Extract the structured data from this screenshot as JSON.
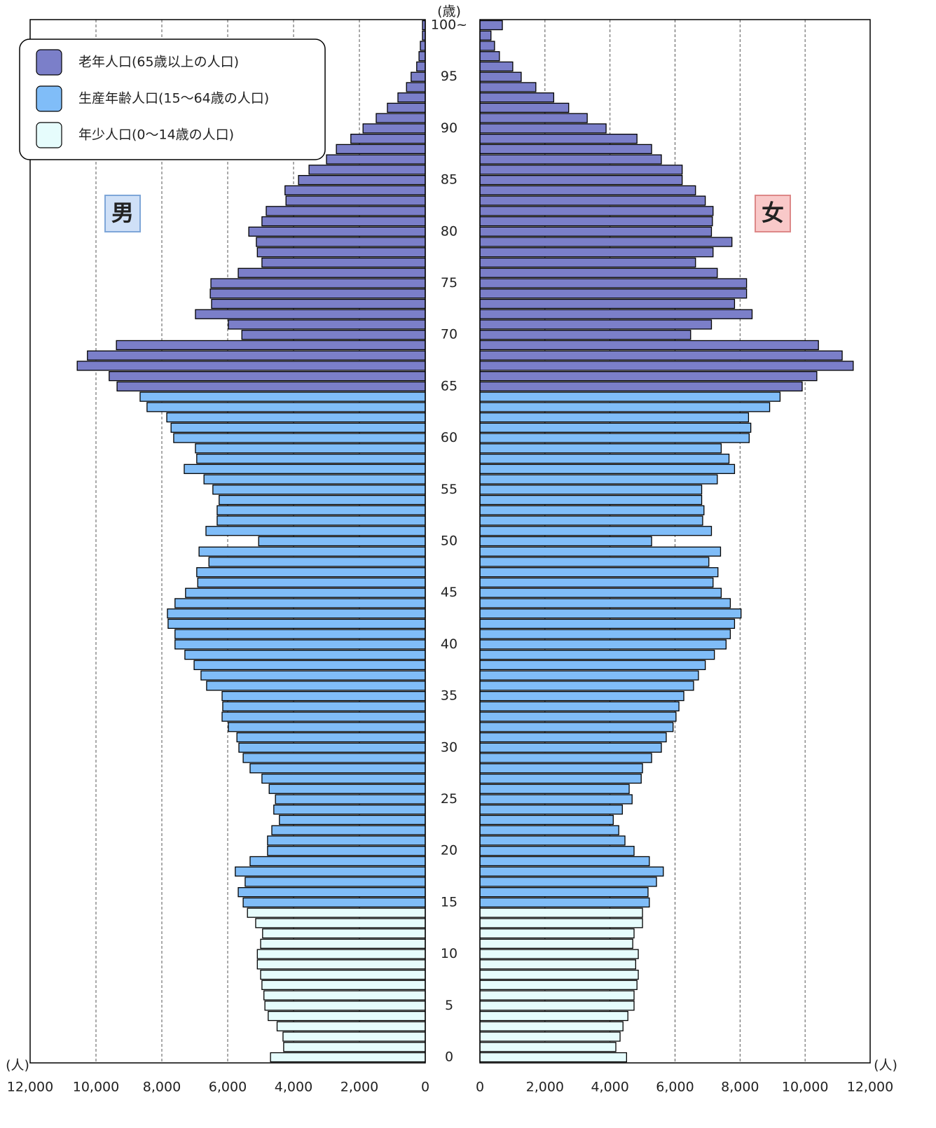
{
  "chart_data": {
    "type": "pyramid",
    "age_unit": "(歳)",
    "x_unit": "(人)",
    "categories": [
      "0",
      null,
      null,
      null,
      null,
      "5",
      null,
      null,
      null,
      null,
      "10",
      null,
      null,
      null,
      null,
      "15",
      null,
      null,
      null,
      null,
      "20",
      null,
      null,
      null,
      null,
      "25",
      null,
      null,
      null,
      null,
      "30",
      null,
      null,
      null,
      null,
      "35",
      null,
      null,
      null,
      null,
      "40",
      null,
      null,
      null,
      null,
      "45",
      null,
      null,
      null,
      null,
      "50",
      null,
      null,
      null,
      null,
      "55",
      null,
      null,
      null,
      null,
      "60",
      null,
      null,
      null,
      null,
      "65",
      null,
      null,
      null,
      null,
      "70",
      null,
      null,
      null,
      null,
      "75",
      null,
      null,
      null,
      null,
      "80",
      null,
      null,
      null,
      null,
      "85",
      null,
      null,
      null,
      null,
      "90",
      null,
      null,
      null,
      null,
      "95",
      null,
      null,
      null,
      null,
      "100~"
    ],
    "series": [
      {
        "name": "男",
        "values": [
          4700,
          4300,
          4320,
          4500,
          4770,
          4870,
          4900,
          4960,
          5000,
          5100,
          5100,
          5000,
          4940,
          5150,
          5400,
          5530,
          5680,
          5470,
          5770,
          5320,
          4790,
          4790,
          4660,
          4430,
          4600,
          4550,
          4740,
          4960,
          5320,
          5530,
          5660,
          5720,
          5980,
          6170,
          6150,
          6170,
          6640,
          6810,
          7020,
          7300,
          7600,
          7600,
          7810,
          7830,
          7600,
          7280,
          6910,
          6940,
          6570,
          6870,
          5060,
          6660,
          6320,
          6320,
          6260,
          6450,
          6720,
          7320,
          6940,
          6980,
          7640,
          7720,
          7850,
          8450,
          8660,
          9360,
          9600,
          10570,
          10260,
          9380,
          5570,
          5980,
          6980,
          6490,
          6530,
          6510,
          5680,
          4960,
          5100,
          5130,
          5360,
          4960,
          4830,
          4230,
          4260,
          3850,
          3530,
          3000,
          2700,
          2260,
          1890,
          1490,
          1150,
          830,
          570,
          430,
          260,
          190,
          150,
          85,
          85
        ]
      },
      {
        "name": "女",
        "values": [
          4510,
          4180,
          4310,
          4400,
          4550,
          4740,
          4740,
          4830,
          4870,
          4790,
          4870,
          4700,
          4740,
          5000,
          5000,
          5210,
          5170,
          5430,
          5640,
          5210,
          4740,
          4460,
          4270,
          4100,
          4380,
          4680,
          4590,
          4960,
          5000,
          5280,
          5580,
          5730,
          5940,
          6030,
          6120,
          6270,
          6570,
          6720,
          6930,
          7210,
          7570,
          7700,
          7830,
          8030,
          7700,
          7420,
          7170,
          7320,
          7040,
          7400,
          5280,
          7120,
          6850,
          6890,
          6820,
          6820,
          7300,
          7830,
          7660,
          7420,
          8280,
          8330,
          8260,
          8910,
          9230,
          9910,
          10360,
          11480,
          11140,
          10410,
          6480,
          7120,
          8370,
          7830,
          8200,
          8200,
          7300,
          6630,
          7170,
          7750,
          7120,
          7150,
          7170,
          6930,
          6630,
          6220,
          6220,
          5580,
          5280,
          4830,
          3880,
          3300,
          2730,
          2270,
          1720,
          1270,
          1010,
          600,
          450,
          340,
          690
        ]
      }
    ],
    "legend": [
      {
        "name": "老年人口(65歳以上の人口)",
        "color": "#7b7fc9"
      },
      {
        "name": "生産年齢人口(15〜64歳の人口)",
        "color": "#80bdf8"
      },
      {
        "name": "年少人口(0〜14歳の人口)",
        "color": "#e6fcfc"
      }
    ],
    "group_of_category": [
      2,
      2,
      2,
      2,
      2,
      2,
      2,
      2,
      2,
      2,
      2,
      2,
      2,
      2,
      2,
      1,
      1,
      1,
      1,
      1,
      1,
      1,
      1,
      1,
      1,
      1,
      1,
      1,
      1,
      1,
      1,
      1,
      1,
      1,
      1,
      1,
      1,
      1,
      1,
      1,
      1,
      1,
      1,
      1,
      1,
      1,
      1,
      1,
      1,
      1,
      1,
      1,
      1,
      1,
      1,
      1,
      1,
      1,
      1,
      1,
      1,
      1,
      1,
      1,
      1,
      0,
      0,
      0,
      0,
      0,
      0,
      0,
      0,
      0,
      0,
      0,
      0,
      0,
      0,
      0,
      0,
      0,
      0,
      0,
      0,
      0,
      0,
      0,
      0,
      0,
      0,
      0,
      0,
      0,
      0,
      0,
      0,
      0,
      0,
      0,
      0
    ],
    "xlim": [
      0,
      12000
    ],
    "xticks": [
      0,
      {
        "value": 2000,
        "label": "2,000"
      },
      {
        "value": 4000,
        "label": "4,000"
      },
      {
        "value": 6000,
        "label": "6,000"
      },
      {
        "value": 8000,
        "label": "8,000"
      },
      {
        "value": 10000,
        "label": "10,000"
      },
      {
        "value": 12000,
        "label": "12,000"
      }
    ],
    "grid": true
  }
}
